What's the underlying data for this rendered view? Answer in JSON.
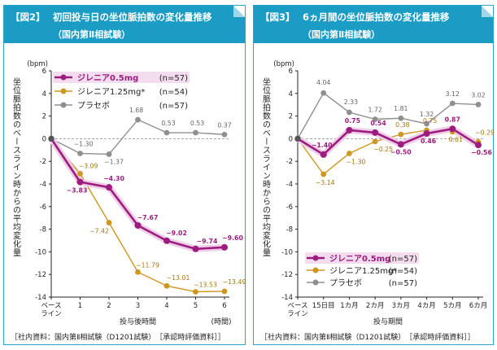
{
  "colors": {
    "header_bg": "#1a9cc4",
    "border": "#2aa5c6",
    "s_low": "#9c1d7f",
    "s_high": "#cf9620",
    "s_placebo": "#8f8f8f",
    "legend_bg": "#f3dcee",
    "dark": "#222222"
  },
  "chart_data": [
    {
      "type": "line",
      "title_num": "【図2】",
      "title": "初回投与日の坐位脈拍数の変化量推移",
      "subtitle": "（国内第Ⅱ相試験）",
      "ylabel": "坐位脈拍数のベースライン時からの平均変化量",
      "yunit": "(bpm)",
      "xlabel": "投与後時間",
      "xunit": "(時間)",
      "ylim": [
        -14,
        6
      ],
      "yticks": [
        6,
        4,
        2,
        0,
        -2,
        -4,
        -6,
        -8,
        -10,
        -12,
        -14
      ],
      "x_categories": [
        "ベース\nライン",
        "1",
        "2",
        "3",
        "4",
        "5",
        "6"
      ],
      "series": [
        {
          "name": "プラセボ",
          "n": "(n=57)",
          "key": "s_placebo",
          "values": [
            0,
            -1.3,
            -1.37,
            1.68,
            0.53,
            0.53,
            0.37
          ],
          "labels": [
            "",
            "−1.30",
            "−1.37",
            "1.68",
            "0.53",
            "0.53",
            "0.37"
          ]
        },
        {
          "name": "ジレニア1.25mg*",
          "n": "(n=54)",
          "key": "s_high",
          "values": [
            0,
            -3.09,
            -7.42,
            -11.79,
            -13.01,
            -13.53,
            -13.49
          ],
          "labels": [
            "",
            "−3.09",
            "−7.42",
            "−11.79",
            "−13.01",
            "−13.53",
            "−13.49"
          ]
        },
        {
          "name": "ジレニア0.5mg",
          "n": "(n=57)",
          "key": "s_low",
          "values": [
            0,
            -3.83,
            -4.3,
            -7.67,
            -9.02,
            -9.74,
            -9.6
          ],
          "labels": [
            "",
            "−3.83",
            "−4.30",
            "−7.67",
            "−9.02",
            "−9.74",
            "−9.60"
          ]
        }
      ],
      "legend_order": [
        2,
        1,
        0
      ],
      "source": "［社内資料：国内第Ⅱ相試験（D1201試験）　［承認時評価資料］］"
    },
    {
      "type": "line",
      "title_num": "【図3】",
      "title": "6ヵ月間の坐位脈拍数の変化量推移",
      "subtitle": "（国内第Ⅱ相試験）",
      "ylabel": "坐位脈拍数のベースライン時からの平均変化量",
      "yunit": "(bpm)",
      "xlabel": "投与期間",
      "xunit": "",
      "ylim": [
        -14,
        6
      ],
      "yticks": [
        6,
        4,
        2,
        0,
        -2,
        -4,
        -6,
        -8,
        -10,
        -12,
        -14
      ],
      "x_categories": [
        "ベース\nライン",
        "15日目",
        "1カ月",
        "2カ月",
        "3カ月",
        "4カ月",
        "5カ月",
        "6カ月"
      ],
      "series": [
        {
          "name": "プラセボ",
          "n": "(n=57)",
          "key": "s_placebo",
          "values": [
            0,
            4.04,
            2.33,
            1.72,
            1.81,
            1.32,
            3.12,
            3.02
          ],
          "labels": [
            "",
            "4.04",
            "2.33",
            "1.72",
            "1.81",
            "1.32",
            "3.12",
            "3.02"
          ]
        },
        {
          "name": "ジレニア1.25mg*",
          "n": "(n=54)",
          "key": "s_high",
          "values": [
            0,
            -3.14,
            -1.3,
            -0.25,
            0.38,
            0.75,
            0.61,
            -0.29
          ],
          "labels": [
            "",
            "−3.14",
            "−1.30",
            "−0.25",
            "0.38",
            "0.75",
            "0.61",
            "−0.29"
          ]
        },
        {
          "name": "ジレニア0.5mg",
          "n": "(n=57)",
          "key": "s_low",
          "values": [
            0,
            -1.4,
            0.75,
            0.54,
            -0.5,
            0.46,
            0.87,
            -0.56
          ],
          "labels": [
            "",
            "−1.40",
            "0.75",
            "0.54",
            "−0.50",
            "0.46",
            "0.87",
            "−0.56"
          ]
        }
      ],
      "legend_order": [
        2,
        1,
        0
      ],
      "source": "［社内資料：国内第Ⅱ相試験（D1201試験）　［承認時評価資料］］"
    }
  ]
}
